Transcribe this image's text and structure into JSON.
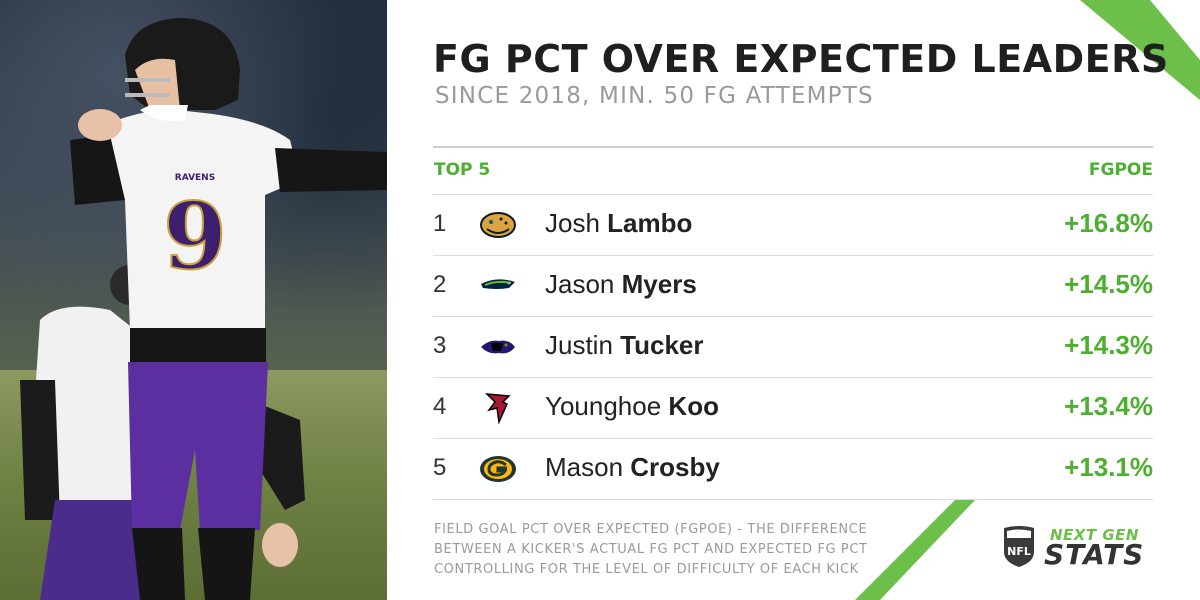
{
  "title": "FG PCT OVER EXPECTED LEADERS",
  "subtitle": "SINCE 2018, MIN. 50 FG ATTEMPTS",
  "table": {
    "header_left": "TOP 5",
    "header_right": "FGPOE",
    "rows": [
      {
        "rank": "1",
        "first": "Josh",
        "last": "Lambo",
        "value": "+16.8%",
        "team_logo": "jaguars-logo"
      },
      {
        "rank": "2",
        "first": "Jason",
        "last": "Myers",
        "value": "+14.5%",
        "team_logo": "seahawks-logo"
      },
      {
        "rank": "3",
        "first": "Justin",
        "last": "Tucker",
        "value": "+14.3%",
        "team_logo": "ravens-logo"
      },
      {
        "rank": "4",
        "first": "Younghoe",
        "last": "Koo",
        "value": "+13.4%",
        "team_logo": "falcons-logo"
      },
      {
        "rank": "5",
        "first": "Mason",
        "last": "Crosby",
        "value": "+13.1%",
        "team_logo": "packers-logo"
      }
    ]
  },
  "footnote": {
    "line1": "FIELD GOAL PCT OVER EXPECTED (FGPOE) - THE DIFFERENCE",
    "line2": "BETWEEN A KICKER'S ACTUAL FG PCT AND EXPECTED FG PCT",
    "line3": "CONTROLLING FOR THE LEVEL OF DIFFICULTY OF EACH KICK"
  },
  "brand": {
    "next_gen": "NEXT GEN",
    "stats": "STATS",
    "nfl": "NFL",
    "accent_color": "#4caf2f"
  },
  "photo": {
    "jersey_number": "9",
    "jersey_wordmark": "RAVENS"
  }
}
